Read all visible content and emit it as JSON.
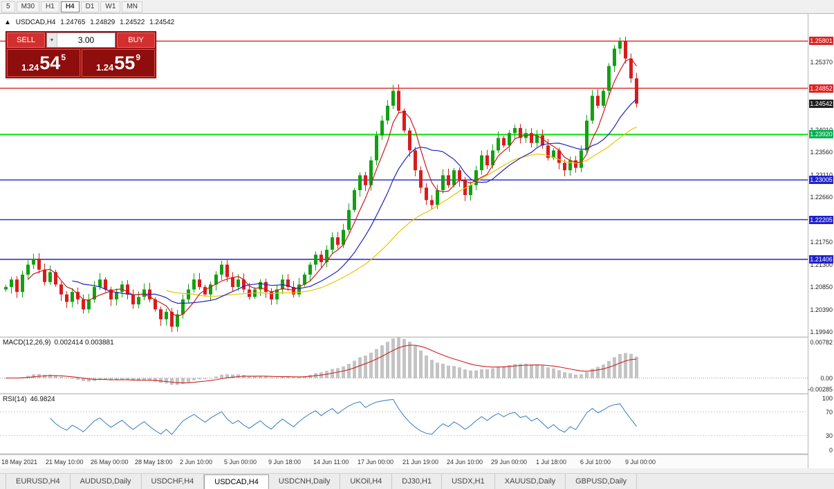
{
  "colors": {
    "up": "#12a012",
    "down": "#d81c1c",
    "ma_fast": "#d01818",
    "ma_mid": "#2020c0",
    "ma_slow": "#e8c400",
    "macd_hist": "#c4c4c4",
    "macd_signal": "#cc2020",
    "rsi_line": "#4785c2",
    "badge_black": "#202020",
    "chrome": "#f0f0f0",
    "border": "#b5b5b5",
    "trade_bg": "#a01010",
    "trade_button": "#d23030"
  },
  "toolbar": {
    "timeframes": [
      "5",
      "M30",
      "H1",
      "H4",
      "D1",
      "W1",
      "MN"
    ],
    "active": "H4"
  },
  "chart_header": {
    "marker": "▲",
    "symbol": "USDCAD,H4",
    "open": "1.24765",
    "high": "1.24829",
    "low": "1.24522",
    "close": "1.24542"
  },
  "trade_panel": {
    "sell_label": "SELL",
    "buy_label": "BUY",
    "volume": "3.00",
    "sell_big": "1.24",
    "sell_mid": "54",
    "sell_sup": "5",
    "buy_big": "1.24",
    "buy_mid": "55",
    "buy_sup": "9"
  },
  "price_axis_labels": [
    "1.25370",
    "1.24010",
    "1.23560",
    "1.23110",
    "1.22660",
    "1.21750",
    "1.21300",
    "1.20850",
    "1.20390",
    "1.19940"
  ],
  "price_badges": [
    {
      "text": "1.25801",
      "value": 1.25801,
      "color": "#e02020"
    },
    {
      "text": "1.24852",
      "value": 1.24852,
      "color": "#e02020"
    },
    {
      "text": "1.24542",
      "value": 1.24542,
      "color": "#202020"
    },
    {
      "text": "1.23920",
      "value": 1.2392,
      "color": "#00b050"
    },
    {
      "text": "1.23005",
      "value": 1.23005,
      "color": "#2020cc"
    },
    {
      "text": "1.22205",
      "value": 1.22205,
      "color": "#2020cc"
    },
    {
      "text": "1.21406",
      "value": 1.21406,
      "color": "#2020cc"
    }
  ],
  "hlines": [
    {
      "value": 1.25801,
      "color": "#e02020",
      "width": 1.4
    },
    {
      "value": 1.24852,
      "color": "#e02020",
      "width": 1.4
    },
    {
      "value": 1.2392,
      "color": "#00e000",
      "width": 2
    },
    {
      "value": 1.23005,
      "color": "#2020cc",
      "width": 1.4
    },
    {
      "value": 1.22205,
      "color": "#2020cc",
      "width": 1.4
    },
    {
      "value": 1.21406,
      "color": "#2020cc",
      "width": 1.4
    }
  ],
  "chart_data": {
    "type": "candlestick",
    "symbol": "USDCAD",
    "timeframe": "H4",
    "price_top": 1.2635,
    "price_bottom": 1.1986,
    "first_open": 1.208,
    "wick": 0.0013,
    "closes": [
      1.2085,
      1.21,
      1.2075,
      1.211,
      1.213,
      1.2142,
      1.212,
      1.2095,
      1.2115,
      1.209,
      1.207,
      1.2055,
      1.2075,
      1.206,
      1.204,
      1.206,
      1.2085,
      1.21,
      1.208,
      1.206,
      1.2075,
      1.209,
      1.207,
      1.205,
      1.2065,
      1.208,
      1.206,
      1.204,
      1.202,
      1.2035,
      1.2005,
      1.203,
      1.206,
      1.208,
      1.21,
      1.2085,
      1.207,
      1.209,
      1.211,
      1.213,
      1.2105,
      1.2085,
      1.21,
      1.208,
      1.2065,
      1.208,
      1.2095,
      1.2075,
      1.206,
      1.208,
      1.21,
      1.2085,
      1.207,
      1.209,
      1.211,
      1.213,
      1.215,
      1.2135,
      1.216,
      1.2185,
      1.217,
      1.22,
      1.224,
      1.228,
      1.231,
      1.229,
      1.234,
      1.239,
      1.242,
      1.245,
      1.248,
      1.244,
      1.24,
      1.236,
      1.232,
      1.2285,
      1.226,
      1.225,
      1.228,
      1.231,
      1.229,
      1.232,
      1.23,
      1.227,
      1.229,
      1.232,
      1.235,
      1.233,
      1.236,
      1.2385,
      1.237,
      1.2395,
      1.2405,
      1.2385,
      1.2395,
      1.2375,
      1.239,
      1.237,
      1.2345,
      1.236,
      1.2335,
      1.232,
      1.234,
      1.2325,
      1.236,
      1.242,
      1.247,
      1.245,
      1.248,
      1.253,
      1.2565,
      1.258,
      1.2545,
      1.2505,
      1.24542
    ]
  },
  "macd": {
    "label": "MACD(12,26,9)",
    "value_text": "0.002414 0.003881",
    "axis_max": "0.00782",
    "axis_zero": "0.00",
    "axis_min": "-0.00285",
    "axis_max_value": 0.00782,
    "axis_min_value": -0.00285
  },
  "rsi": {
    "label": "RSI(14)",
    "value_text": "46.9824",
    "axis": [
      {
        "text": "100",
        "value": 100
      },
      {
        "text": "70",
        "value": 70
      },
      {
        "text": "30",
        "value": 30
      },
      {
        "text": "0",
        "value": 0
      }
    ],
    "levels": [
      70,
      30
    ]
  },
  "x_axis_labels": [
    "18 May 2021",
    "21 May 10:00",
    "26 May 00:00",
    "28 May 18:00",
    "2 Jun 10:00",
    "5 Jun 00:00",
    "9 Jun 18:00",
    "14 Jun 11:00",
    "17 Jun 00:00",
    "21 Jun 19:00",
    "24 Jun 10:00",
    "29 Jun 00:00",
    "1 Jul 18:00",
    "6 Jul 10:00",
    "9 Jul 00:00"
  ],
  "bottom_tabs": {
    "items": [
      "EURUSD,H4",
      "AUDUSD,Daily",
      "USDCHF,H4",
      "USDCAD,H4",
      "USDCNH,Daily",
      "UKOil,H4",
      "DJ30,H1",
      "USDX,H1",
      "XAUUSD,Daily",
      "GBPUSD,Daily"
    ],
    "active": "USDCAD,H4"
  }
}
